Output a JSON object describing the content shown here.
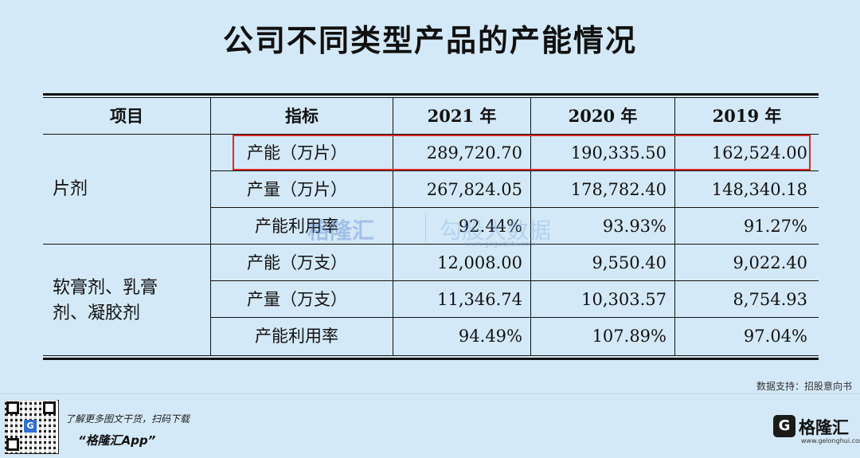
{
  "title": "公司不同类型产品的产能情况",
  "table": {
    "headers": [
      "项目",
      "指标",
      "2021 年",
      "2020 年",
      "2019 年"
    ],
    "groups": [
      {
        "label_lines": [
          "片剂"
        ],
        "rows": [
          {
            "metric": "产能（万片）",
            "y2021": "289,720.70",
            "y2020": "190,335.50",
            "y2019": "162,524.00"
          },
          {
            "metric": "产量（万片）",
            "y2021": "267,824.05",
            "y2020": "178,782.40",
            "y2019": "148,340.18"
          },
          {
            "metric": "产能利用率",
            "y2021": "92.44%",
            "y2020": "93.93%",
            "y2019": "91.27%"
          }
        ]
      },
      {
        "label_lines": [
          "软膏剂、乳膏",
          "剂、凝胶剂"
        ],
        "rows": [
          {
            "metric": "产能（万支）",
            "y2021": "12,008.00",
            "y2020": "9,550.40",
            "y2019": "9,022.40"
          },
          {
            "metric": "产量（万支）",
            "y2021": "11,346.74",
            "y2020": "10,303.57",
            "y2019": "8,754.93"
          },
          {
            "metric": "产能利用率",
            "y2021": "94.49%",
            "y2020": "107.89%",
            "y2019": "97.04%"
          }
        ]
      }
    ]
  },
  "watermark": {
    "brand": "格隆汇",
    "sub": "勾股大数据",
    "url": "www.gogudata.com"
  },
  "source": "数据支持：招股意向书",
  "footer": {
    "promo_line1": "了解更多图文干货，扫码下载",
    "promo_line2": "“格隆汇App”",
    "qr_logo": "G",
    "logo_mark": "G",
    "logo_text": "格隆汇",
    "logo_url": "www.gelonghui.com"
  },
  "colors": {
    "background": "#d4e9f7",
    "highlight": "#d82a2a"
  }
}
